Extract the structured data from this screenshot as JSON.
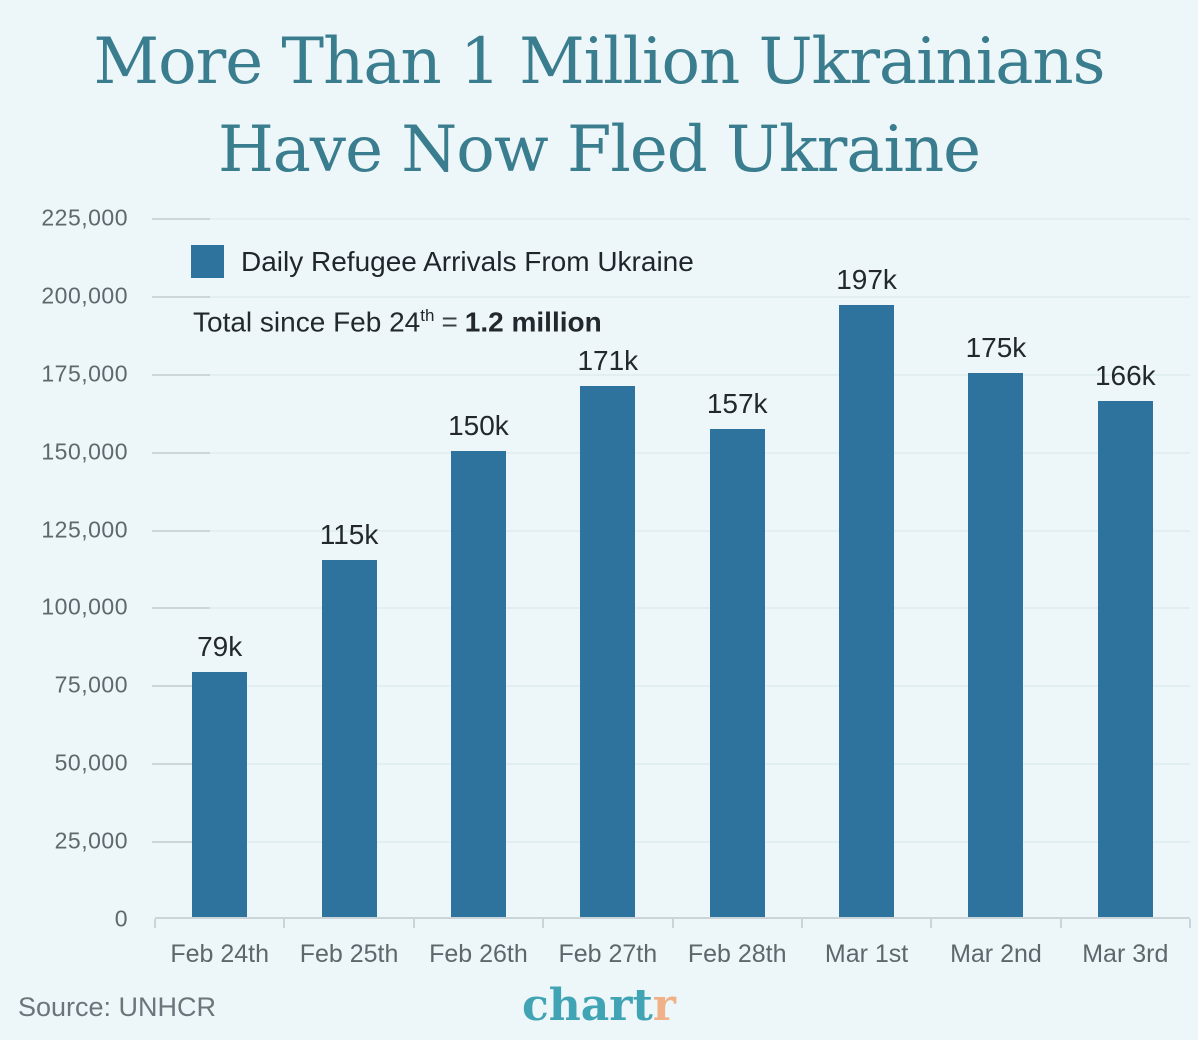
{
  "title": {
    "line1": "More Than 1 Million Ukrainians",
    "line2": "Have Now Fled Ukraine"
  },
  "legend": {
    "label": "Daily Refugee Arrivals From Ukraine"
  },
  "subtitle": {
    "prefix": "Total since Feb 24",
    "superscript": "th",
    "equals_sign": "=",
    "bold_value": "1.2 million"
  },
  "footer": {
    "source": "Source: UNHCR",
    "logo_main": "chart",
    "logo_r": "r"
  },
  "colors": {
    "background": "#EDF7F9",
    "title": "#3A7D8E",
    "bar": "#2E739E",
    "axis_text": "#5E686D",
    "dark_text": "#22282D",
    "logo_teal": "#41A4B5",
    "logo_orange": "#F0B189"
  },
  "chart_data": {
    "type": "bar",
    "title": "More Than 1 Million Ukrainians Have Now Fled Ukraine",
    "legend_entries": [
      "Daily Refugee Arrivals From Ukraine"
    ],
    "legend_position": "top-left inside plot",
    "annotation": "Total since Feb 24th = 1.2 million",
    "categories": [
      "Feb 24th",
      "Feb 25th",
      "Feb 26th",
      "Feb 27th",
      "Feb 28th",
      "Mar 1st",
      "Mar 2nd",
      "Mar 3rd"
    ],
    "values": [
      79000,
      115000,
      150000,
      171000,
      157000,
      197000,
      175000,
      166000
    ],
    "bar_labels": [
      "79k",
      "115k",
      "150k",
      "171k",
      "157k",
      "197k",
      "175k",
      "166k"
    ],
    "xlabel": "",
    "ylabel": "",
    "ylim": [
      0,
      225000
    ],
    "ytick_interval": 25000,
    "ytick_labels": [
      "0",
      "25,000",
      "50,000",
      "75,000",
      "100,000",
      "125,000",
      "150,000",
      "175,000",
      "200,000",
      "225,000"
    ],
    "grid": true,
    "source": "UNHCR"
  }
}
